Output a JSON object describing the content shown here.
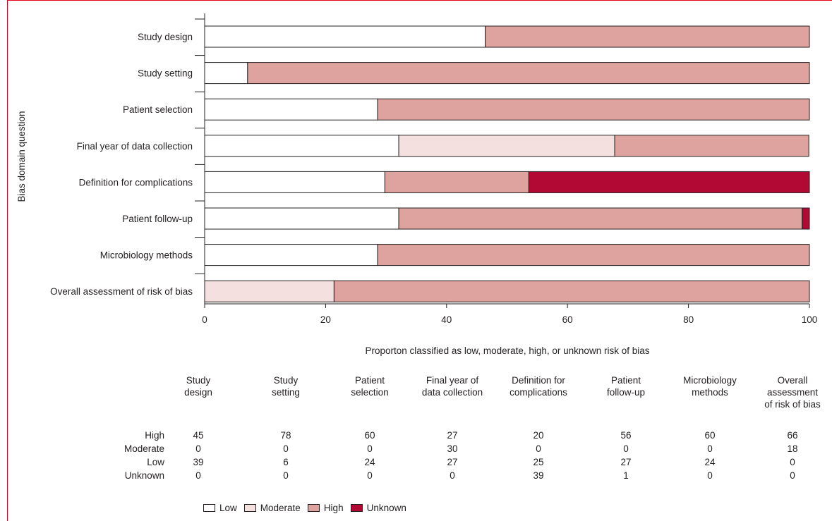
{
  "chart_data": {
    "type": "bar",
    "orientation": "horizontal",
    "stacked": true,
    "ylabel": "Bias domain question",
    "xlabel": "Proporton classified as low, moderate, high, or unknown risk of bias",
    "xlim": [
      0,
      100
    ],
    "xticks": [
      "0",
      "20",
      "40",
      "60",
      "80",
      "100"
    ],
    "categories": [
      "Study design",
      "Study setting",
      "Patient selection",
      "Final year of data collection",
      "Definition for complications",
      "Patient follow-up",
      "Microbiology methods",
      "Overall assessment of risk of bias"
    ],
    "series": [
      {
        "name": "Low",
        "color": "#ffffff",
        "values": [
          46.4,
          7.1,
          28.6,
          32.1,
          29.8,
          32.1,
          28.6,
          0
        ]
      },
      {
        "name": "Moderate",
        "color": "#f5e0e0",
        "values": [
          0,
          0,
          0,
          35.7,
          0,
          0,
          0,
          21.4
        ]
      },
      {
        "name": "High",
        "color": "#dfa39f",
        "values": [
          53.6,
          92.9,
          71.4,
          32.1,
          23.8,
          66.7,
          71.4,
          78.6
        ]
      },
      {
        "name": "Unknown",
        "color": "#b10834",
        "values": [
          0,
          0,
          0,
          0,
          46.4,
          1.2,
          0,
          0
        ]
      }
    ],
    "legend": {
      "position": "bottom"
    },
    "grid": false
  },
  "table": {
    "columns": [
      "Study\ndesign",
      "Study\nsetting",
      "Patient\nselection",
      "Final year of\ndata collection",
      "Definition for\ncomplications",
      "Patient\nfollow-up",
      "Microbiology\nmethods",
      "Overall\nassessment\nof risk of bias"
    ],
    "rows": [
      {
        "label": "High",
        "values": [
          "45",
          "78",
          "60",
          "27",
          "20",
          "56",
          "60",
          "66"
        ]
      },
      {
        "label": "Moderate",
        "values": [
          "0",
          "0",
          "0",
          "30",
          "0",
          "0",
          "0",
          "18"
        ]
      },
      {
        "label": "Low",
        "values": [
          "39",
          "6",
          "24",
          "27",
          "25",
          "27",
          "24",
          "0"
        ]
      },
      {
        "label": "Unknown",
        "values": [
          "0",
          "0",
          "0",
          "0",
          "39",
          "1",
          "0",
          "0"
        ]
      }
    ]
  },
  "legend": {
    "items": [
      {
        "label": "Low",
        "color": "#ffffff"
      },
      {
        "label": "Moderate",
        "color": "#f5e0e0"
      },
      {
        "label": "High",
        "color": "#dfa39f"
      },
      {
        "label": "Unknown",
        "color": "#b10834"
      }
    ]
  },
  "frame_color": "#e2001a"
}
